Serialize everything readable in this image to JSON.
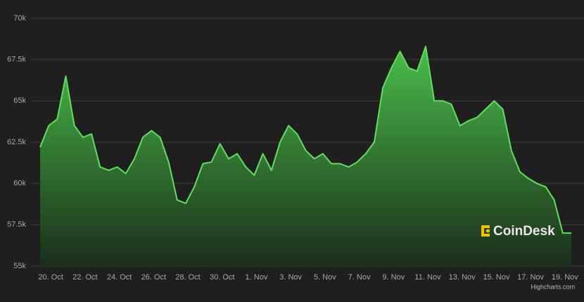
{
  "chart_data": {
    "type": "area",
    "watermark": "CoinDesk",
    "credit": "Highcharts.com",
    "color": "#5ee05e",
    "grid": true,
    "categories": [
      null,
      "20. Oct",
      null,
      null,
      null,
      "22. Oct",
      null,
      null,
      null,
      "24. Oct",
      null,
      null,
      null,
      "26. Oct",
      null,
      null,
      null,
      "28. Oct",
      null,
      null,
      null,
      "30. Oct",
      null,
      null,
      null,
      "1. Nov",
      null,
      null,
      null,
      "3. Nov",
      null,
      null,
      null,
      "5. Nov",
      null,
      null,
      null,
      "7. Nov",
      null,
      null,
      null,
      "9. Nov",
      null,
      null,
      null,
      "11. Nov",
      null,
      null,
      null,
      "13. Nov",
      null,
      null,
      null,
      "15. Nov",
      null,
      null,
      null,
      "17. Nov",
      null,
      null,
      null,
      "19. Nov",
      null
    ],
    "values": [
      62200,
      63500,
      63900,
      66500,
      63500,
      62800,
      63000,
      61000,
      60800,
      61000,
      60600,
      61500,
      62800,
      63200,
      62800,
      61300,
      59000,
      58800,
      59800,
      61200,
      61300,
      62400,
      61500,
      61800,
      61000,
      60500,
      61800,
      60800,
      62500,
      63500,
      63000,
      62000,
      61500,
      61800,
      61200,
      61200,
      61000,
      61300,
      61800,
      62500,
      65800,
      67000,
      68000,
      67000,
      66800,
      68300,
      65000,
      65000,
      64800,
      63500,
      63800,
      64000,
      64500,
      65000,
      64500,
      62000,
      60700,
      60300,
      60000,
      59800,
      59000,
      57000,
      57000
    ],
    "ylim": [
      55000,
      70000
    ],
    "yticks": [
      {
        "value": 55000,
        "label": "55k"
      },
      {
        "value": 57500,
        "label": "57.5k"
      },
      {
        "value": 60000,
        "label": "60k"
      },
      {
        "value": 62500,
        "label": "62.5k"
      },
      {
        "value": 65000,
        "label": "65k"
      },
      {
        "value": 67500,
        "label": "67.5k"
      },
      {
        "value": 70000,
        "label": "70k"
      }
    ]
  }
}
